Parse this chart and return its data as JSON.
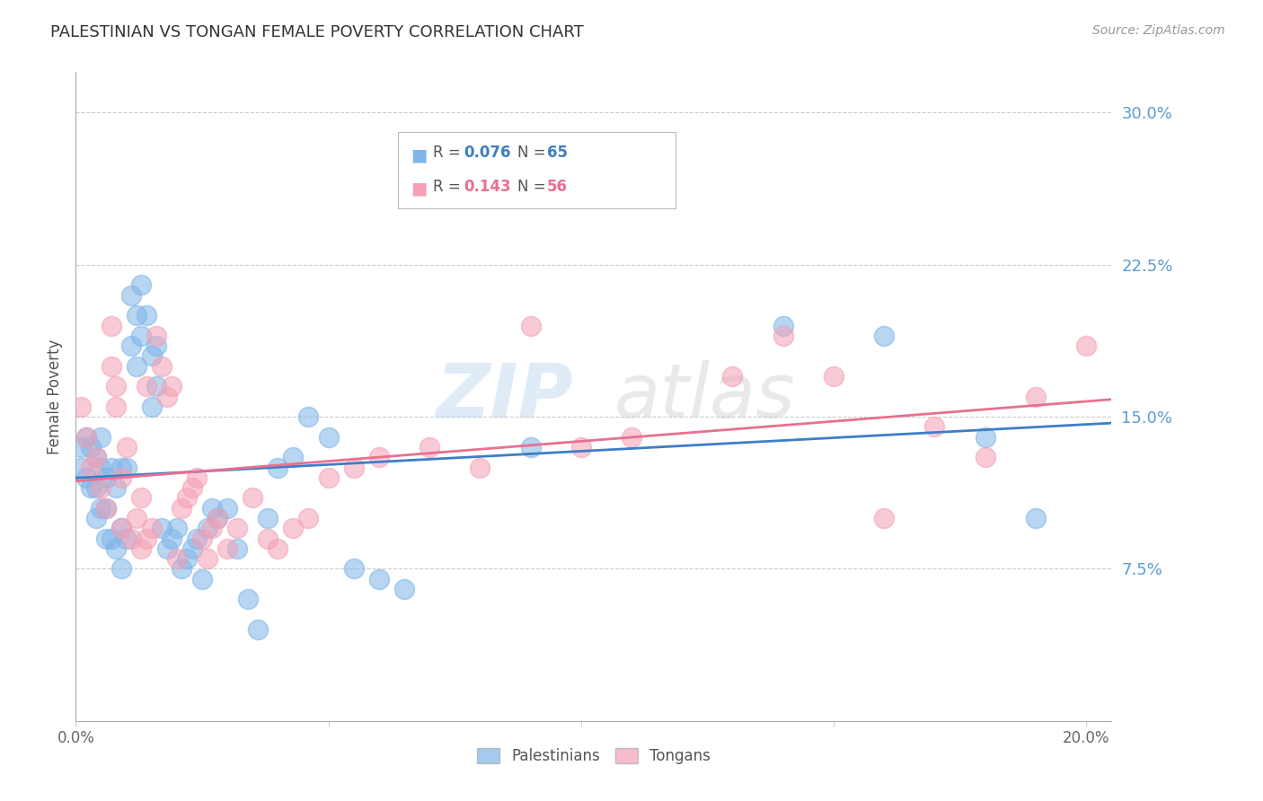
{
  "title": "PALESTINIAN VS TONGAN FEMALE POVERTY CORRELATION CHART",
  "source": "Source: ZipAtlas.com",
  "ylabel": "Female Poverty",
  "pal_color": "#7EB5E8",
  "ton_color": "#F4A0B5",
  "pal_line_color": "#3D7EC7",
  "ton_line_color": "#E87090",
  "pal_R": "0.076",
  "pal_N": "65",
  "ton_R": "0.143",
  "ton_N": "56",
  "watermark": "ZIPatlas",
  "xlim": [
    0.0,
    0.205
  ],
  "ylim": [
    0.0,
    0.32
  ],
  "x_ticks": [
    0.0,
    0.05,
    0.1,
    0.15,
    0.2
  ],
  "y_ticks": [
    0.0,
    0.075,
    0.15,
    0.225,
    0.3
  ],
  "y_tick_labels": [
    "",
    "7.5%",
    "15.0%",
    "22.5%",
    "30.0%"
  ],
  "pal_x": [
    0.001,
    0.001,
    0.002,
    0.002,
    0.003,
    0.003,
    0.004,
    0.004,
    0.004,
    0.005,
    0.005,
    0.005,
    0.006,
    0.006,
    0.006,
    0.007,
    0.007,
    0.008,
    0.008,
    0.009,
    0.009,
    0.009,
    0.01,
    0.01,
    0.011,
    0.011,
    0.012,
    0.012,
    0.013,
    0.013,
    0.014,
    0.015,
    0.015,
    0.016,
    0.016,
    0.017,
    0.018,
    0.019,
    0.02,
    0.021,
    0.022,
    0.023,
    0.024,
    0.025,
    0.026,
    0.027,
    0.028,
    0.03,
    0.032,
    0.034,
    0.036,
    0.038,
    0.04,
    0.043,
    0.046,
    0.05,
    0.055,
    0.06,
    0.065,
    0.07,
    0.09,
    0.14,
    0.16,
    0.18,
    0.19
  ],
  "pal_y": [
    0.135,
    0.125,
    0.14,
    0.12,
    0.135,
    0.115,
    0.13,
    0.115,
    0.1,
    0.14,
    0.125,
    0.105,
    0.12,
    0.105,
    0.09,
    0.125,
    0.09,
    0.115,
    0.085,
    0.125,
    0.095,
    0.075,
    0.125,
    0.09,
    0.21,
    0.185,
    0.2,
    0.175,
    0.215,
    0.19,
    0.2,
    0.18,
    0.155,
    0.185,
    0.165,
    0.095,
    0.085,
    0.09,
    0.095,
    0.075,
    0.08,
    0.085,
    0.09,
    0.07,
    0.095,
    0.105,
    0.1,
    0.105,
    0.085,
    0.06,
    0.045,
    0.1,
    0.125,
    0.13,
    0.15,
    0.14,
    0.075,
    0.07,
    0.065,
    0.28,
    0.135,
    0.195,
    0.19,
    0.14,
    0.1
  ],
  "ton_x": [
    0.001,
    0.002,
    0.003,
    0.004,
    0.005,
    0.006,
    0.007,
    0.007,
    0.008,
    0.008,
    0.009,
    0.009,
    0.01,
    0.011,
    0.012,
    0.013,
    0.013,
    0.014,
    0.014,
    0.015,
    0.016,
    0.017,
    0.018,
    0.019,
    0.02,
    0.021,
    0.022,
    0.023,
    0.024,
    0.025,
    0.026,
    0.027,
    0.028,
    0.03,
    0.032,
    0.035,
    0.038,
    0.04,
    0.043,
    0.046,
    0.05,
    0.055,
    0.06,
    0.07,
    0.08,
    0.09,
    0.1,
    0.11,
    0.13,
    0.14,
    0.15,
    0.16,
    0.17,
    0.18,
    0.19,
    0.2
  ],
  "ton_y": [
    0.155,
    0.14,
    0.125,
    0.13,
    0.115,
    0.105,
    0.195,
    0.175,
    0.165,
    0.155,
    0.12,
    0.095,
    0.135,
    0.09,
    0.1,
    0.11,
    0.085,
    0.09,
    0.165,
    0.095,
    0.19,
    0.175,
    0.16,
    0.165,
    0.08,
    0.105,
    0.11,
    0.115,
    0.12,
    0.09,
    0.08,
    0.095,
    0.1,
    0.085,
    0.095,
    0.11,
    0.09,
    0.085,
    0.095,
    0.1,
    0.12,
    0.125,
    0.13,
    0.135,
    0.125,
    0.195,
    0.135,
    0.14,
    0.17,
    0.19,
    0.17,
    0.1,
    0.145,
    0.13,
    0.16,
    0.185
  ]
}
